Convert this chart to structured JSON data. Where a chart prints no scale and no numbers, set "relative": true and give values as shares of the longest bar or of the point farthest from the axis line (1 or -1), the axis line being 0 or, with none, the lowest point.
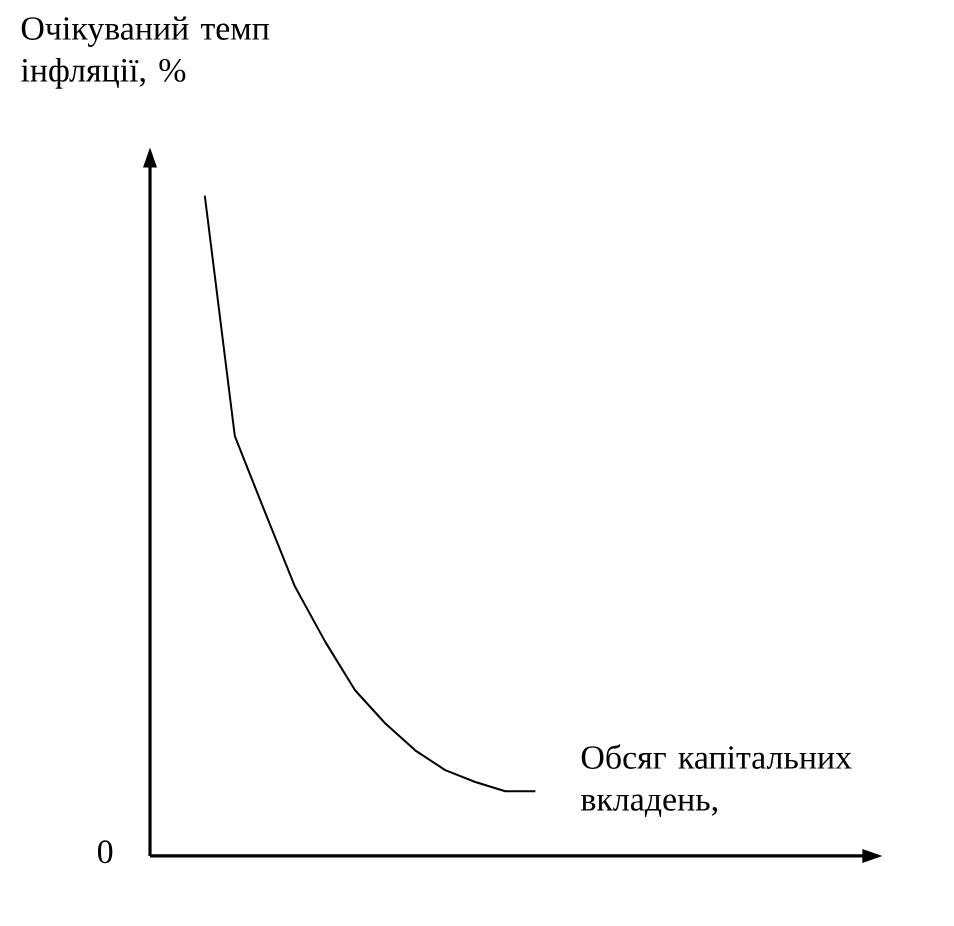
{
  "chart_data": {
    "type": "line",
    "relative": true,
    "ylabel": "Очікуваний темп інфляції, %",
    "xlabel": "Обсяг капітальних вкладень,",
    "annotations": [
      "0"
    ],
    "color": "#000000",
    "marker": "none",
    "categories": [
      null,
      null,
      null,
      null,
      null,
      null,
      null,
      null,
      null,
      null,
      null,
      null
    ],
    "values": [
      1.0,
      0.636,
      0.521,
      0.408,
      0.325,
      0.251,
      0.201,
      0.16,
      0.13,
      0.112,
      0.098,
      0.098
    ]
  }
}
